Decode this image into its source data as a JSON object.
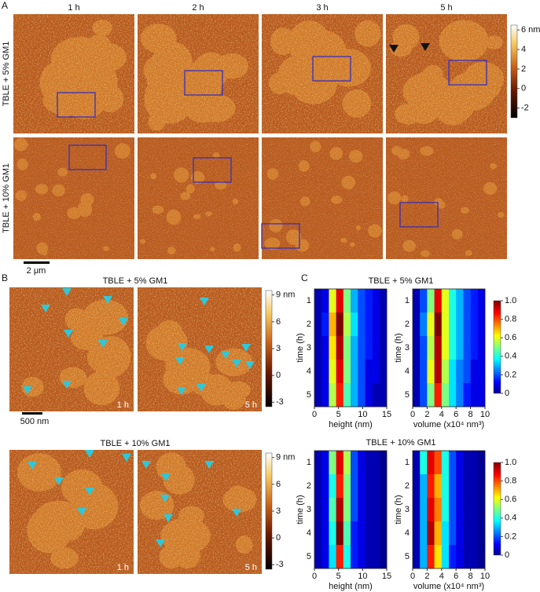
{
  "panel_a": {
    "label": "A",
    "times": [
      "1 h",
      "2 h",
      "3 h",
      "5 h"
    ],
    "rows": [
      "TBLE + 5% GM1",
      "TBLE + 10% GM1"
    ],
    "scale_bar": "2 μm",
    "colorbar": {
      "lim": [
        -3,
        6.5
      ],
      "ticks": [
        {
          "value": 6,
          "label": "6 nm"
        },
        4,
        2,
        0,
        -2
      ]
    }
  },
  "panel_b": {
    "label": "B",
    "scale_bar": "500 nm",
    "rows": [
      {
        "title": "TBLE + 5% GM1",
        "times": [
          "1 h",
          "5 h"
        ]
      },
      {
        "title": "TBLE + 10% GM1",
        "times": [
          "1 h",
          "5 h"
        ]
      }
    ],
    "colorbar": {
      "lim": [
        -3.5,
        9.5
      ],
      "ticks": [
        {
          "value": 9,
          "label": "9 nm"
        },
        6,
        3,
        0,
        -3
      ]
    }
  },
  "panel_c": {
    "label": "C",
    "colormap": "jet",
    "colorbar": {
      "lim": [
        0,
        1
      ],
      "ticks": [
        0,
        0.2,
        0.4,
        0.6,
        0.8,
        {
          "value": 1,
          "label": "1.0"
        }
      ]
    },
    "rows": [
      {
        "title": "TBLE + 5% GM1",
        "charts": [
          {
            "type": "heatmap",
            "xlabel": "height (nm)",
            "ylabel": "time (h)",
            "categories": [
              1,
              2,
              3,
              4,
              5
            ],
            "xlim": [
              0,
              15
            ],
            "xticks": [
              0,
              5,
              10,
              15
            ],
            "values": [
              [
                0.05,
                0.1,
                0.6,
                0.9,
                0.5,
                0.3,
                0.2,
                0.15,
                0.1,
                0.05
              ],
              [
                0.05,
                0.15,
                0.7,
                1.0,
                0.55,
                0.35,
                0.2,
                0.15,
                0.1,
                0.05
              ],
              [
                0.05,
                0.1,
                0.65,
                0.95,
                0.5,
                0.3,
                0.2,
                0.15,
                0.1,
                0.05
              ],
              [
                0.05,
                0.1,
                0.6,
                0.9,
                0.5,
                0.3,
                0.2,
                0.1,
                0.1,
                0.05
              ],
              [
                0.05,
                0.1,
                0.55,
                0.85,
                0.45,
                0.3,
                0.2,
                0.1,
                0.05,
                0.05
              ]
            ]
          },
          {
            "type": "heatmap",
            "xlabel": "volume (x10⁴ nm³)",
            "ylabel": "time (h)",
            "categories": [
              1,
              2,
              3,
              4,
              5
            ],
            "xlim": [
              0,
              10
            ],
            "xticks": [
              0,
              2,
              4,
              6,
              8,
              10
            ],
            "values": [
              [
                0.05,
                0.2,
                0.5,
                0.9,
                0.6,
                0.4,
                0.3,
                0.2,
                0.15,
                0.1
              ],
              [
                0.05,
                0.25,
                0.6,
                1.0,
                0.6,
                0.4,
                0.3,
                0.2,
                0.15,
                0.1
              ],
              [
                0.05,
                0.2,
                0.55,
                0.95,
                0.6,
                0.4,
                0.3,
                0.2,
                0.15,
                0.1
              ],
              [
                0.05,
                0.2,
                0.6,
                0.95,
                0.55,
                0.35,
                0.25,
                0.2,
                0.1,
                0.1
              ],
              [
                0.05,
                0.2,
                0.5,
                0.85,
                0.5,
                0.35,
                0.25,
                0.15,
                0.1,
                0.1
              ]
            ]
          }
        ]
      },
      {
        "title": "TBLE + 10% GM1",
        "charts": [
          {
            "type": "heatmap",
            "xlabel": "height (nm)",
            "ylabel": "time (h)",
            "categories": [
              1,
              2,
              3,
              4,
              5
            ],
            "xlim": [
              0,
              15
            ],
            "xticks": [
              0,
              5,
              10,
              15
            ],
            "values": [
              [
                0.05,
                0.1,
                0.5,
                0.9,
                0.55,
                0.2,
                0.1,
                0.05,
                0.05,
                0.02
              ],
              [
                0.05,
                0.1,
                0.4,
                0.85,
                0.5,
                0.2,
                0.1,
                0.05,
                0.05,
                0.02
              ],
              [
                0.05,
                0.1,
                0.45,
                0.95,
                0.5,
                0.2,
                0.1,
                0.05,
                0.05,
                0.02
              ],
              [
                0.05,
                0.1,
                0.4,
                1.0,
                0.45,
                0.15,
                0.1,
                0.05,
                0.05,
                0.02
              ],
              [
                0.05,
                0.1,
                0.35,
                0.85,
                0.4,
                0.15,
                0.1,
                0.05,
                0.05,
                0.02
              ]
            ]
          },
          {
            "type": "heatmap",
            "xlabel": "volume (x10⁴ nm³)",
            "ylabel": "time (h)",
            "categories": [
              1,
              2,
              3,
              4,
              5
            ],
            "xlim": [
              0,
              10
            ],
            "xticks": [
              0,
              2,
              4,
              6,
              8,
              10
            ],
            "values": [
              [
                0.05,
                0.4,
                0.9,
                0.8,
                0.4,
                0.2,
                0.1,
                0.05,
                0.05,
                0.02
              ],
              [
                0.05,
                0.3,
                0.85,
                0.7,
                0.4,
                0.2,
                0.1,
                0.05,
                0.05,
                0.02
              ],
              [
                0.05,
                0.3,
                0.9,
                0.75,
                0.4,
                0.2,
                0.1,
                0.05,
                0.05,
                0.02
              ],
              [
                0.05,
                0.3,
                0.95,
                0.7,
                0.35,
                0.2,
                0.1,
                0.05,
                0.05,
                0.02
              ],
              [
                0.05,
                0.3,
                0.85,
                0.65,
                0.35,
                0.15,
                0.1,
                0.05,
                0.05,
                0.02
              ]
            ]
          }
        ]
      }
    ]
  }
}
